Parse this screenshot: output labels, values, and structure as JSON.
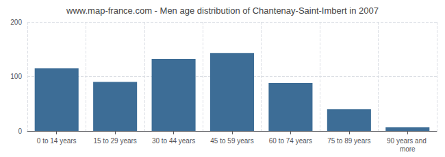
{
  "chart_data": {
    "type": "bar",
    "title": "www.map-france.com - Men age distribution of Chantenay-Saint-Imbert in 2007",
    "categories": [
      "0 to 14 years",
      "15 to 29 years",
      "30 to 44 years",
      "45 to 59 years",
      "60 to 74 years",
      "75 to 89 years",
      "90 years and more"
    ],
    "values": [
      115,
      90,
      132,
      143,
      88,
      40,
      7
    ],
    "color": "#3d6d96",
    "ylim": [
      0,
      200
    ],
    "yticks": [
      0,
      100,
      200
    ],
    "grid": true
  }
}
